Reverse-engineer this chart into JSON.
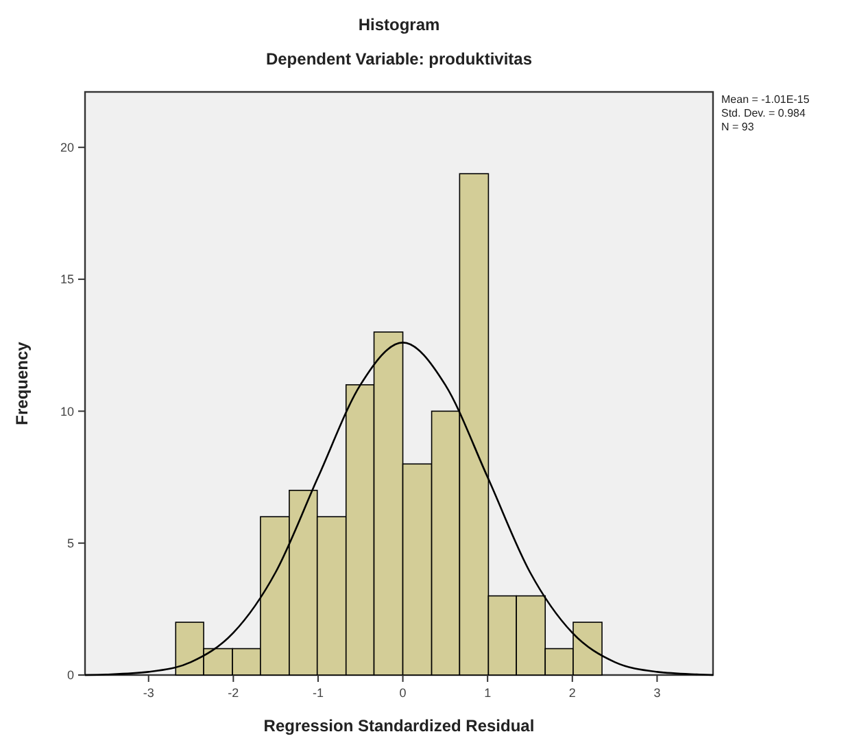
{
  "chart_data": {
    "type": "histogram",
    "title": "Histogram",
    "subtitle": "Dependent Variable: produktivitas",
    "xlabel": "Regression Standardized Residual",
    "ylabel": "Frequency",
    "bins": [
      -2.68,
      -2.35,
      -2.01,
      -1.68,
      -1.34,
      -1.01,
      -0.67,
      -0.34,
      0.0,
      0.34,
      0.67,
      1.01,
      1.34,
      1.68,
      2.01,
      2.35
    ],
    "values": [
      2,
      1,
      1,
      6,
      7,
      6,
      11,
      13,
      8,
      10,
      19,
      3,
      3,
      1,
      2
    ],
    "color": "#d3cd97",
    "series": [
      {
        "type": "line",
        "color": "#000000",
        "x": [
          -3.75,
          -3.5,
          -3,
          -2.5,
          -2,
          -1.5,
          -1,
          -0.5,
          0,
          0.5,
          1,
          1.5,
          2,
          2.5,
          3,
          3.5,
          3.66
        ],
        "values": [
          0,
          0.02,
          0.12,
          0.49,
          1.6,
          3.9,
          7.5,
          11,
          12.6,
          11,
          7.5,
          3.9,
          1.6,
          0.49,
          0.12,
          0.02,
          0
        ]
      }
    ],
    "xlim": [
      -3.75,
      3.66
    ],
    "xticks": [
      -3,
      -2,
      -1,
      0,
      1,
      2,
      3
    ],
    "ylim": [
      0,
      22.1
    ],
    "yticks": [
      0,
      5,
      10,
      15,
      20
    ],
    "grid": false,
    "annotations": [
      "Mean = -1.01E-15",
      "Std. Dev. = 0.984",
      "N = 93"
    ]
  }
}
